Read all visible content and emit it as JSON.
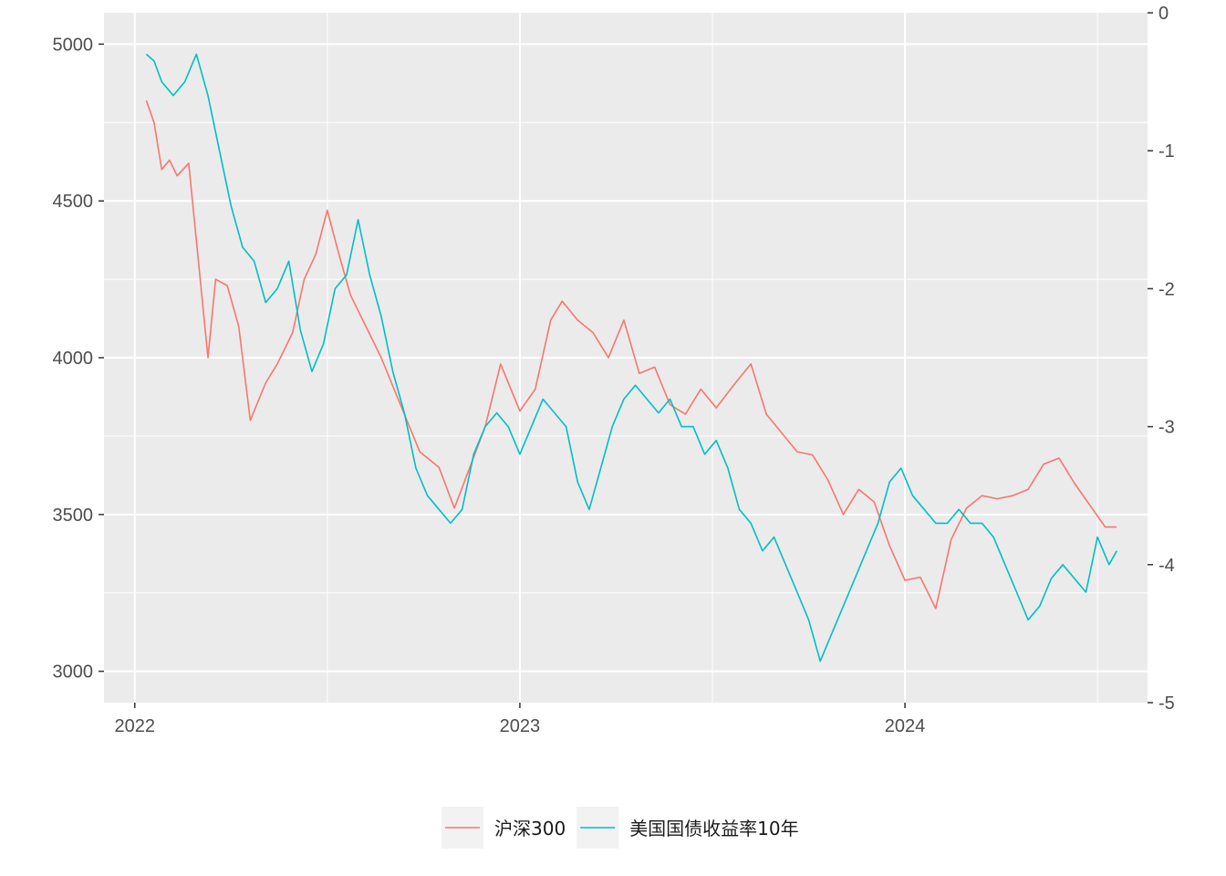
{
  "chart_data": {
    "type": "line",
    "title": "",
    "xlabel": "",
    "ylabel": "",
    "x_ticks": [
      "2022",
      "2023",
      "2024"
    ],
    "left_axis": {
      "range": [
        2900,
        5100
      ],
      "ticks": [
        "3000",
        "3500",
        "4000",
        "4500",
        "5000"
      ]
    },
    "right_axis": {
      "range": [
        -5,
        0
      ],
      "ticks": [
        "0",
        "-1",
        "-2",
        "-3",
        "-4",
        "-5"
      ]
    },
    "x_range_years": [
      2021.92,
      2024.63
    ],
    "grid": true,
    "legend_position": "bottom",
    "series": [
      {
        "name": "沪深300",
        "axis": "left",
        "color": "#F8766D",
        "points": [
          [
            2022.03,
            4820
          ],
          [
            2022.05,
            4750
          ],
          [
            2022.07,
            4600
          ],
          [
            2022.09,
            4630
          ],
          [
            2022.11,
            4580
          ],
          [
            2022.14,
            4620
          ],
          [
            2022.17,
            4250
          ],
          [
            2022.19,
            4000
          ],
          [
            2022.21,
            4250
          ],
          [
            2022.24,
            4230
          ],
          [
            2022.27,
            4100
          ],
          [
            2022.3,
            3800
          ],
          [
            2022.34,
            3920
          ],
          [
            2022.37,
            3980
          ],
          [
            2022.41,
            4080
          ],
          [
            2022.44,
            4250
          ],
          [
            2022.47,
            4330
          ],
          [
            2022.5,
            4470
          ],
          [
            2022.53,
            4330
          ],
          [
            2022.56,
            4200
          ],
          [
            2022.6,
            4100
          ],
          [
            2022.64,
            4000
          ],
          [
            2022.69,
            3850
          ],
          [
            2022.74,
            3700
          ],
          [
            2022.79,
            3650
          ],
          [
            2022.83,
            3520
          ],
          [
            2022.87,
            3650
          ],
          [
            2022.91,
            3780
          ],
          [
            2022.95,
            3980
          ],
          [
            2023.0,
            3830
          ],
          [
            2023.04,
            3900
          ],
          [
            2023.08,
            4120
          ],
          [
            2023.11,
            4180
          ],
          [
            2023.15,
            4120
          ],
          [
            2023.19,
            4080
          ],
          [
            2023.23,
            4000
          ],
          [
            2023.27,
            4120
          ],
          [
            2023.31,
            3950
          ],
          [
            2023.35,
            3970
          ],
          [
            2023.39,
            3850
          ],
          [
            2023.43,
            3820
          ],
          [
            2023.47,
            3900
          ],
          [
            2023.51,
            3840
          ],
          [
            2023.56,
            3920
          ],
          [
            2023.6,
            3980
          ],
          [
            2023.64,
            3820
          ],
          [
            2023.68,
            3760
          ],
          [
            2023.72,
            3700
          ],
          [
            2023.76,
            3690
          ],
          [
            2023.8,
            3610
          ],
          [
            2023.84,
            3500
          ],
          [
            2023.88,
            3580
          ],
          [
            2023.92,
            3540
          ],
          [
            2023.96,
            3400
          ],
          [
            2024.0,
            3290
          ],
          [
            2024.04,
            3300
          ],
          [
            2024.08,
            3200
          ],
          [
            2024.12,
            3420
          ],
          [
            2024.16,
            3520
          ],
          [
            2024.2,
            3560
          ],
          [
            2024.24,
            3550
          ],
          [
            2024.28,
            3560
          ],
          [
            2024.32,
            3580
          ],
          [
            2024.36,
            3660
          ],
          [
            2024.4,
            3680
          ],
          [
            2024.44,
            3600
          ],
          [
            2024.48,
            3530
          ],
          [
            2024.52,
            3460
          ],
          [
            2024.55,
            3460
          ]
        ]
      },
      {
        "name": "美国国债收益率10年",
        "axis": "right",
        "color": "#00BFC4",
        "points": [
          [
            2022.03,
            -0.3
          ],
          [
            2022.05,
            -0.35
          ],
          [
            2022.07,
            -0.5
          ],
          [
            2022.1,
            -0.6
          ],
          [
            2022.13,
            -0.5
          ],
          [
            2022.16,
            -0.3
          ],
          [
            2022.19,
            -0.6
          ],
          [
            2022.22,
            -1.0
          ],
          [
            2022.25,
            -1.4
          ],
          [
            2022.28,
            -1.7
          ],
          [
            2022.31,
            -1.8
          ],
          [
            2022.34,
            -2.1
          ],
          [
            2022.37,
            -2.0
          ],
          [
            2022.4,
            -1.8
          ],
          [
            2022.43,
            -2.3
          ],
          [
            2022.46,
            -2.6
          ],
          [
            2022.49,
            -2.4
          ],
          [
            2022.52,
            -2.0
          ],
          [
            2022.55,
            -1.9
          ],
          [
            2022.58,
            -1.5
          ],
          [
            2022.61,
            -1.9
          ],
          [
            2022.64,
            -2.2
          ],
          [
            2022.67,
            -2.6
          ],
          [
            2022.7,
            -2.9
          ],
          [
            2022.73,
            -3.3
          ],
          [
            2022.76,
            -3.5
          ],
          [
            2022.79,
            -3.6
          ],
          [
            2022.82,
            -3.7
          ],
          [
            2022.85,
            -3.6
          ],
          [
            2022.88,
            -3.2
          ],
          [
            2022.91,
            -3.0
          ],
          [
            2022.94,
            -2.9
          ],
          [
            2022.97,
            -3.0
          ],
          [
            2023.0,
            -3.2
          ],
          [
            2023.03,
            -3.0
          ],
          [
            2023.06,
            -2.8
          ],
          [
            2023.09,
            -2.9
          ],
          [
            2023.12,
            -3.0
          ],
          [
            2023.15,
            -3.4
          ],
          [
            2023.18,
            -3.6
          ],
          [
            2023.21,
            -3.3
          ],
          [
            2023.24,
            -3.0
          ],
          [
            2023.27,
            -2.8
          ],
          [
            2023.3,
            -2.7
          ],
          [
            2023.33,
            -2.8
          ],
          [
            2023.36,
            -2.9
          ],
          [
            2023.39,
            -2.8
          ],
          [
            2023.42,
            -3.0
          ],
          [
            2023.45,
            -3.0
          ],
          [
            2023.48,
            -3.2
          ],
          [
            2023.51,
            -3.1
          ],
          [
            2023.54,
            -3.3
          ],
          [
            2023.57,
            -3.6
          ],
          [
            2023.6,
            -3.7
          ],
          [
            2023.63,
            -3.9
          ],
          [
            2023.66,
            -3.8
          ],
          [
            2023.69,
            -4.0
          ],
          [
            2023.72,
            -4.2
          ],
          [
            2023.75,
            -4.4
          ],
          [
            2023.78,
            -4.7
          ],
          [
            2023.81,
            -4.5
          ],
          [
            2023.84,
            -4.3
          ],
          [
            2023.87,
            -4.1
          ],
          [
            2023.9,
            -3.9
          ],
          [
            2023.93,
            -3.7
          ],
          [
            2023.96,
            -3.4
          ],
          [
            2023.99,
            -3.3
          ],
          [
            2024.02,
            -3.5
          ],
          [
            2024.05,
            -3.6
          ],
          [
            2024.08,
            -3.7
          ],
          [
            2024.11,
            -3.7
          ],
          [
            2024.14,
            -3.6
          ],
          [
            2024.17,
            -3.7
          ],
          [
            2024.2,
            -3.7
          ],
          [
            2024.23,
            -3.8
          ],
          [
            2024.26,
            -4.0
          ],
          [
            2024.29,
            -4.2
          ],
          [
            2024.32,
            -4.4
          ],
          [
            2024.35,
            -4.3
          ],
          [
            2024.38,
            -4.1
          ],
          [
            2024.41,
            -4.0
          ],
          [
            2024.44,
            -4.1
          ],
          [
            2024.47,
            -4.2
          ],
          [
            2024.5,
            -3.8
          ],
          [
            2024.53,
            -4.0
          ],
          [
            2024.55,
            -3.9
          ]
        ]
      }
    ]
  }
}
